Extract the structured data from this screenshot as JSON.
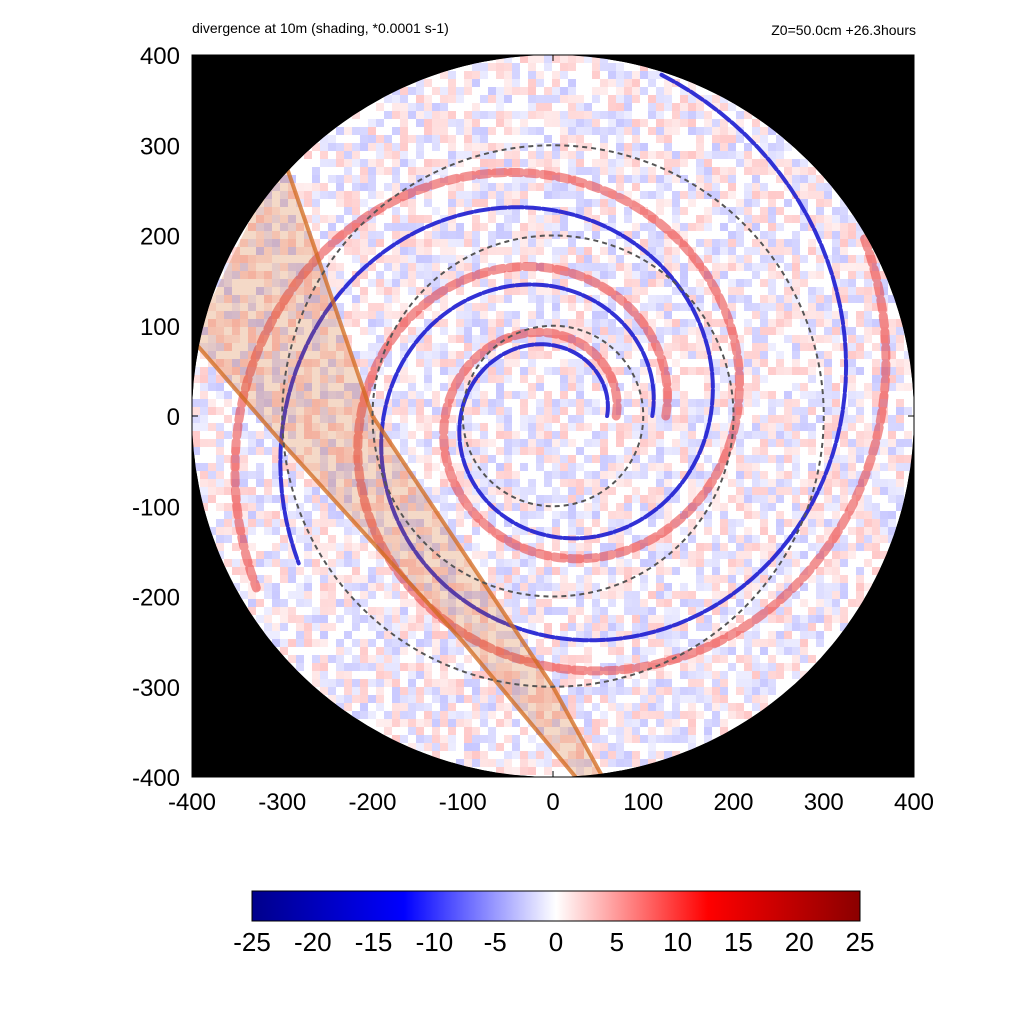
{
  "header": {
    "left_title": "divergence at 10m (shading, *0.0001 s-1)",
    "right_title": "Z0=50.0cm  +26.3hours"
  },
  "chart_data": {
    "type": "heatmap",
    "title": "divergence at 10m (shading, *0.0001 s-1)",
    "annotation": "Z0=50.0cm  +26.3hours",
    "xlim": [
      -400,
      400
    ],
    "ylim": [
      -400,
      400
    ],
    "x_ticks": [
      -400,
      -300,
      -200,
      -100,
      0,
      100,
      200,
      300,
      400
    ],
    "y_ticks": [
      400,
      300,
      200,
      100,
      0,
      -100,
      -200,
      -300,
      -400
    ],
    "x_tick_labels": [
      "-400",
      "-300",
      "-200",
      "-100",
      "0",
      "100",
      "200",
      "300",
      "400"
    ],
    "y_tick_labels": [
      "400",
      "300",
      "200",
      "100",
      "0",
      "-100",
      "-200",
      "-300",
      "-400"
    ],
    "domain_radius": 400,
    "background_outside_domain": "#000000",
    "range_rings_radii": [
      100,
      200,
      300
    ],
    "colorbar": {
      "min": -25,
      "max": 25,
      "ticks": [
        -25,
        -20,
        -15,
        -10,
        -5,
        0,
        5,
        10,
        15,
        20,
        25
      ],
      "tick_labels": [
        "-25",
        "-20",
        "-15",
        "-10",
        "-5",
        "0",
        "5",
        "10",
        "15",
        "20",
        "25"
      ],
      "colors": [
        "#00008b",
        "#0000ff",
        "#ffffff",
        "#ff0000",
        "#8b0000"
      ]
    },
    "overlay_band": {
      "line1": [
        [
          -300,
          290
        ],
        [
          -200,
          0
        ],
        [
          0,
          -300
        ],
        [
          55,
          -400
        ]
      ],
      "line2": [
        [
          -400,
          85
        ],
        [
          -300,
          -30
        ],
        [
          -100,
          -250
        ],
        [
          25,
          -400
        ]
      ],
      "color": "#d2691e"
    },
    "spiral_bands": [
      {
        "type": "negative",
        "center": [
          0,
          0
        ],
        "a": 60,
        "b": 0.17,
        "theta_start": 0.0,
        "theta_end": 10.0
      },
      {
        "type": "negative",
        "center": [
          0,
          0
        ],
        "a": 110,
        "b": 0.17,
        "theta_start": 0.0,
        "theta_end": 9.0
      },
      {
        "type": "positive",
        "center": [
          0,
          0
        ],
        "a": 70,
        "b": 0.17,
        "theta_start": 0.0,
        "theta_end": 10.0
      },
      {
        "type": "positive",
        "center": [
          0,
          0
        ],
        "a": 125,
        "b": 0.17,
        "theta_start": 0.0,
        "theta_end": 9.0
      }
    ]
  }
}
